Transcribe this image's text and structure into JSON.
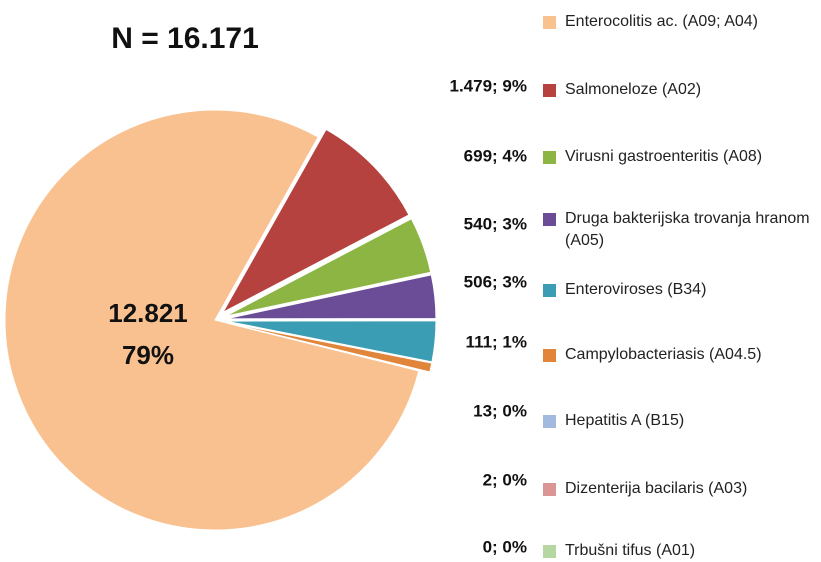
{
  "chart_data": {
    "type": "pie",
    "title": "N = 16.171",
    "categories": [
      "Enterocolitis ac. (A09; A04)",
      "Salmoneloze (A02)",
      "Virusni gastroenteritis (A08)",
      "Druga bakterijska trovanja hranom (A05)",
      "Enteroviroses (B34)",
      "Campylobacteriasis (A04.5)",
      "Hepatitis A (B15)",
      "Dizenterija bacilaris (A03)",
      "Trbušni tifus (A01)"
    ],
    "values": [
      12821,
      1479,
      699,
      540,
      506,
      111,
      13,
      2,
      0
    ],
    "value_labels": [
      [
        "12.821",
        "79%"
      ],
      "1.479; 9%",
      "699; 4%",
      "540; 3%",
      "506; 3%",
      "111; 1%",
      "13; 0%",
      "2; 0%",
      "0; 0%"
    ],
    "colors": [
      "#f9c090",
      "#b5423f",
      "#8db544",
      "#6b4c97",
      "#3a9db3",
      "#e0853a",
      "#a3b9de",
      "#d99694",
      "#b7d7a2"
    ],
    "legend": "right"
  }
}
